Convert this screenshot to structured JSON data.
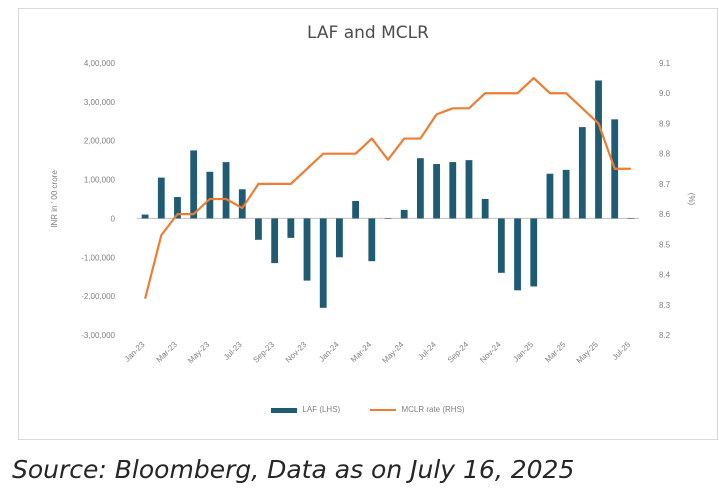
{
  "chart_data": {
    "type": "bar+line",
    "title": "LAF and MCLR",
    "categories": [
      "Jan-23",
      "Feb-23",
      "Mar-23",
      "Apr-23",
      "May-23",
      "Jun-23",
      "Jul-23",
      "Aug-23",
      "Sep-23",
      "Oct-23",
      "Nov-23",
      "Dec-23",
      "Jan-24",
      "Feb-24",
      "Mar-24",
      "Apr-24",
      "May-24",
      "Jun-24",
      "Jul-24",
      "Aug-24",
      "Sep-24",
      "Oct-24",
      "Nov-24",
      "Dec-24",
      "Jan-25",
      "Feb-25",
      "Mar-25",
      "Apr-25",
      "May-25",
      "Jun-25",
      "Jul-25"
    ],
    "x_tick_labels": [
      "Jan-23",
      "Mar-23",
      "May-23",
      "Jul-23",
      "Sep-23",
      "Nov-23",
      "Jan-24",
      "Mar-24",
      "May-24",
      "Jul-24",
      "Sep-24",
      "Nov-24",
      "Jan-25",
      "Mar-25",
      "May-25",
      "Jul-25"
    ],
    "ylabel_left": "INR in ' 00 crore",
    "ylabel_right": "(%)",
    "ylim_left": [
      -300000,
      400000
    ],
    "ylim_right": [
      8.2,
      9.1
    ],
    "y_ticks_left": [
      "4,00,000",
      "3,00,000",
      "2,00,000",
      "1,00,000",
      "0",
      "-1,00,000",
      "-2,00,000",
      "-3,00,000"
    ],
    "y_ticks_right": [
      "9.1",
      "9.0",
      "8.9",
      "8.8",
      "8.7",
      "8.6",
      "8.5",
      "8.4",
      "8.3",
      "8.2"
    ],
    "series": [
      {
        "name": "LAF (LHS)",
        "kind": "bar",
        "axis": "left",
        "color": "#1f5c73",
        "values": [
          10000,
          105000,
          55000,
          175000,
          120000,
          145000,
          75000,
          -55000,
          -115000,
          -50000,
          -160000,
          -230000,
          -100000,
          45000,
          -110000,
          0,
          22000,
          155000,
          140000,
          145000,
          150000,
          50000,
          -140000,
          -185000,
          -175000,
          115000,
          125000,
          235000,
          355000,
          255000,
          0
        ]
      },
      {
        "name": "MCLR rate (RHS)",
        "kind": "line",
        "axis": "right",
        "color": "#ed7d31",
        "values": [
          8.32,
          8.53,
          8.6,
          8.6,
          8.65,
          8.65,
          8.62,
          8.7,
          8.7,
          8.7,
          8.75,
          8.8,
          8.8,
          8.8,
          8.85,
          8.78,
          8.85,
          8.85,
          8.93,
          8.95,
          8.95,
          9.0,
          9.0,
          9.0,
          9.05,
          9.0,
          9.0,
          8.95,
          8.9,
          8.75,
          8.75
        ]
      }
    ],
    "grid": false,
    "legend_position": "bottom"
  },
  "legend": {
    "laf_label": "LAF (LHS)",
    "mclr_label": "MCLR rate (RHS)"
  },
  "source_note": "Source: Bloomberg, Data as on July 16, 2025"
}
